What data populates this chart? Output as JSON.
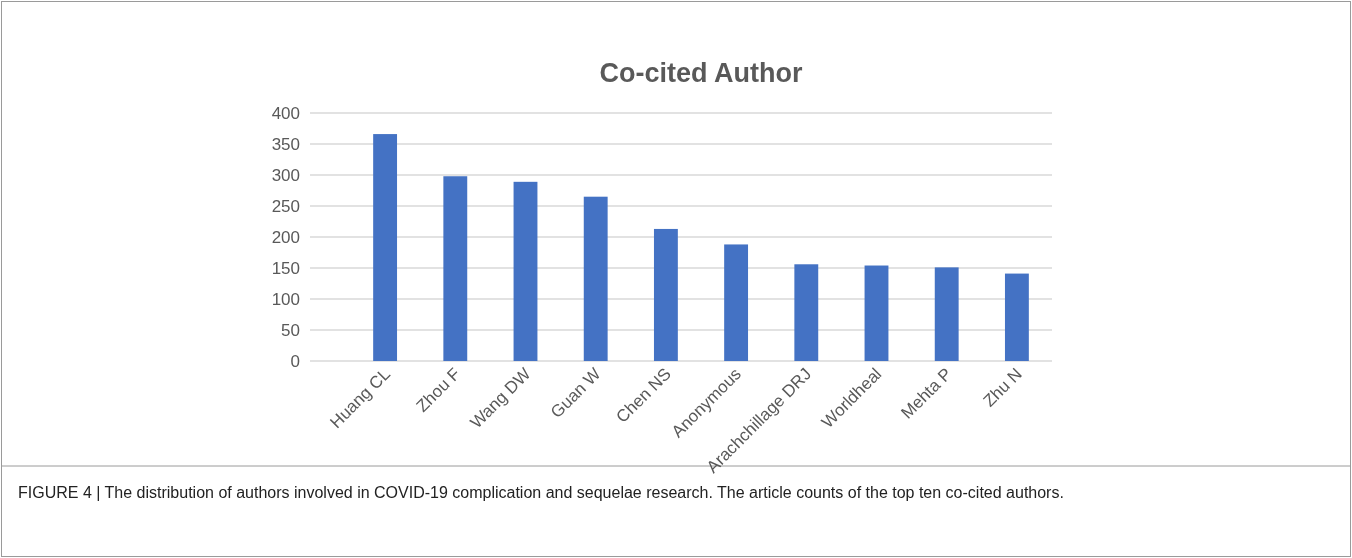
{
  "chart_data": {
    "type": "bar",
    "title": "Co-cited Author",
    "categories": [
      "Huang CL",
      "Zhou F",
      "Wang DW",
      "Guan W",
      "Chen NS",
      "Anonymous",
      "Arachchillage DRJ",
      "Worldheal",
      "Mehta P",
      "Zhu N"
    ],
    "values": [
      366,
      298,
      289,
      265,
      213,
      188,
      156,
      154,
      151,
      141
    ],
    "color": "#4472c4",
    "ylim": [
      0,
      400
    ],
    "yticks": [
      0,
      50,
      100,
      150,
      200,
      250,
      300,
      350,
      400
    ],
    "grid": "y",
    "annotations": [
      "FIGURE 4 | The distribution of authors involved in COVID-19 complication and sequelae research. The article counts of the top ten co-cited authors."
    ]
  }
}
